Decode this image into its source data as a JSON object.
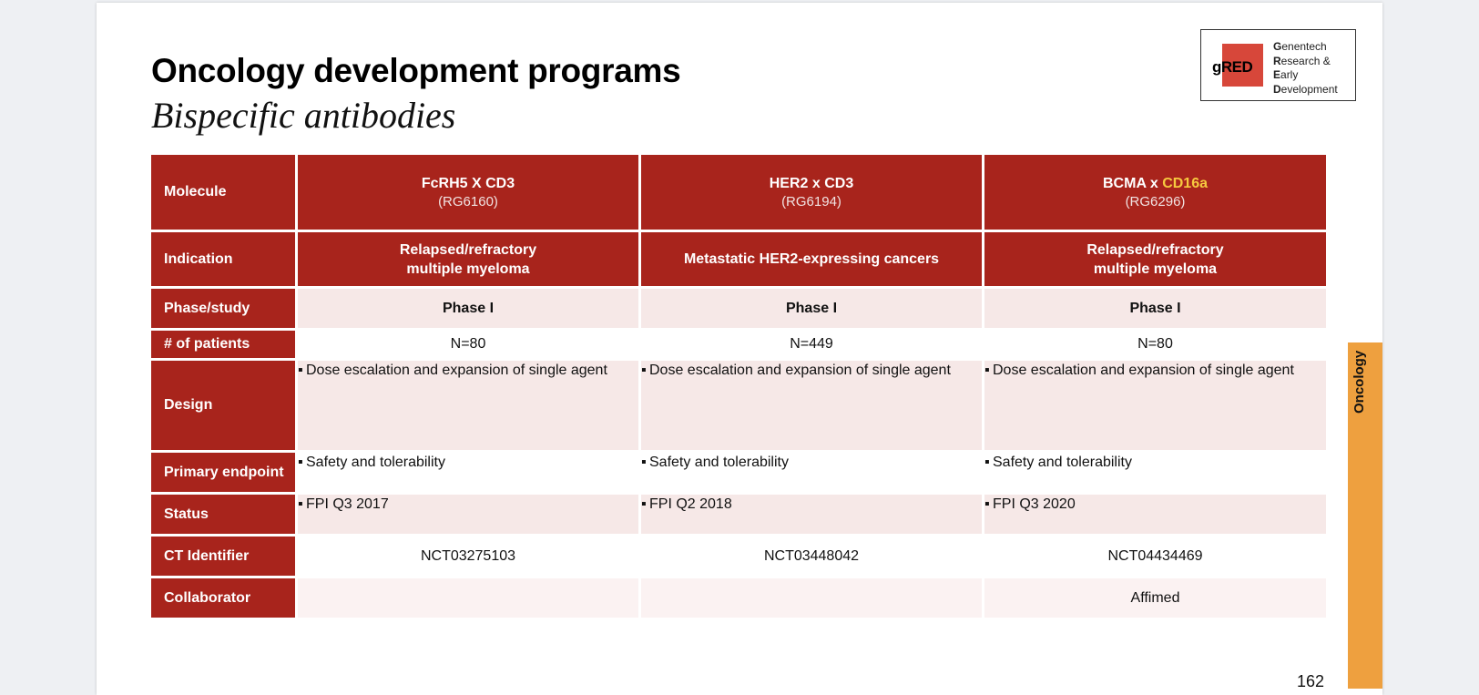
{
  "header": {
    "title": "Oncology development programs",
    "subtitle": "Bispecific antibodies"
  },
  "logo": {
    "mark_prefix": "g",
    "mark_red": "RED",
    "lines": [
      {
        "first": "G",
        "rest": "enentech"
      },
      {
        "first": "R",
        "rest": "esearch &"
      },
      {
        "first": "E",
        "rest": "arly"
      },
      {
        "first": "D",
        "rest": "evelopment"
      }
    ]
  },
  "table": {
    "row_labels": {
      "molecule": "Molecule",
      "indication": "Indication",
      "phase": "Phase/study",
      "patients": "# of patients",
      "design": "Design",
      "endpoint": "Primary endpoint",
      "status": "Status",
      "ct": "CT Identifier",
      "collaborator": "Collaborator"
    },
    "columns": [
      {
        "molecule": "FcRH5 X CD3",
        "molecule_accent": "",
        "code": "(RG6160)",
        "indication_line1": "Relapsed/refractory",
        "indication_line2": "multiple myeloma",
        "phase": "Phase I",
        "patients": "N=80",
        "design": "Dose escalation and expansion of single agent",
        "endpoint": "Safety and tolerability",
        "status": "FPI Q3 2017",
        "ct": "NCT03275103",
        "collaborator": ""
      },
      {
        "molecule": "HER2 x CD3",
        "molecule_accent": "",
        "code": "(RG6194)",
        "indication_line1": "Metastatic HER2-expressing cancers",
        "indication_line2": "",
        "phase": "Phase I",
        "patients": "N=449",
        "design": "Dose escalation and expansion of single agent",
        "endpoint": "Safety and tolerability",
        "status": "FPI Q2 2018",
        "ct": "NCT03448042",
        "collaborator": ""
      },
      {
        "molecule": "BCMA x ",
        "molecule_accent": "CD16a",
        "code": "(RG6296)",
        "indication_line1": "Relapsed/refractory",
        "indication_line2": "multiple myeloma",
        "phase": "Phase I",
        "patients": "N=80",
        "design": "Dose escalation and expansion of single agent",
        "endpoint": "Safety and tolerability",
        "status": "FPI Q3 2020",
        "ct": "NCT04434469",
        "collaborator": "Affimed"
      }
    ],
    "bullet_glyph": "▪"
  },
  "sidetab": {
    "label": "Oncology"
  },
  "page_number": "162",
  "colors": {
    "header_red": "#a8241c",
    "accent_yellow": "#f6c93f",
    "tab_orange": "#eea03f",
    "row_shade": "#f6e8e7"
  }
}
